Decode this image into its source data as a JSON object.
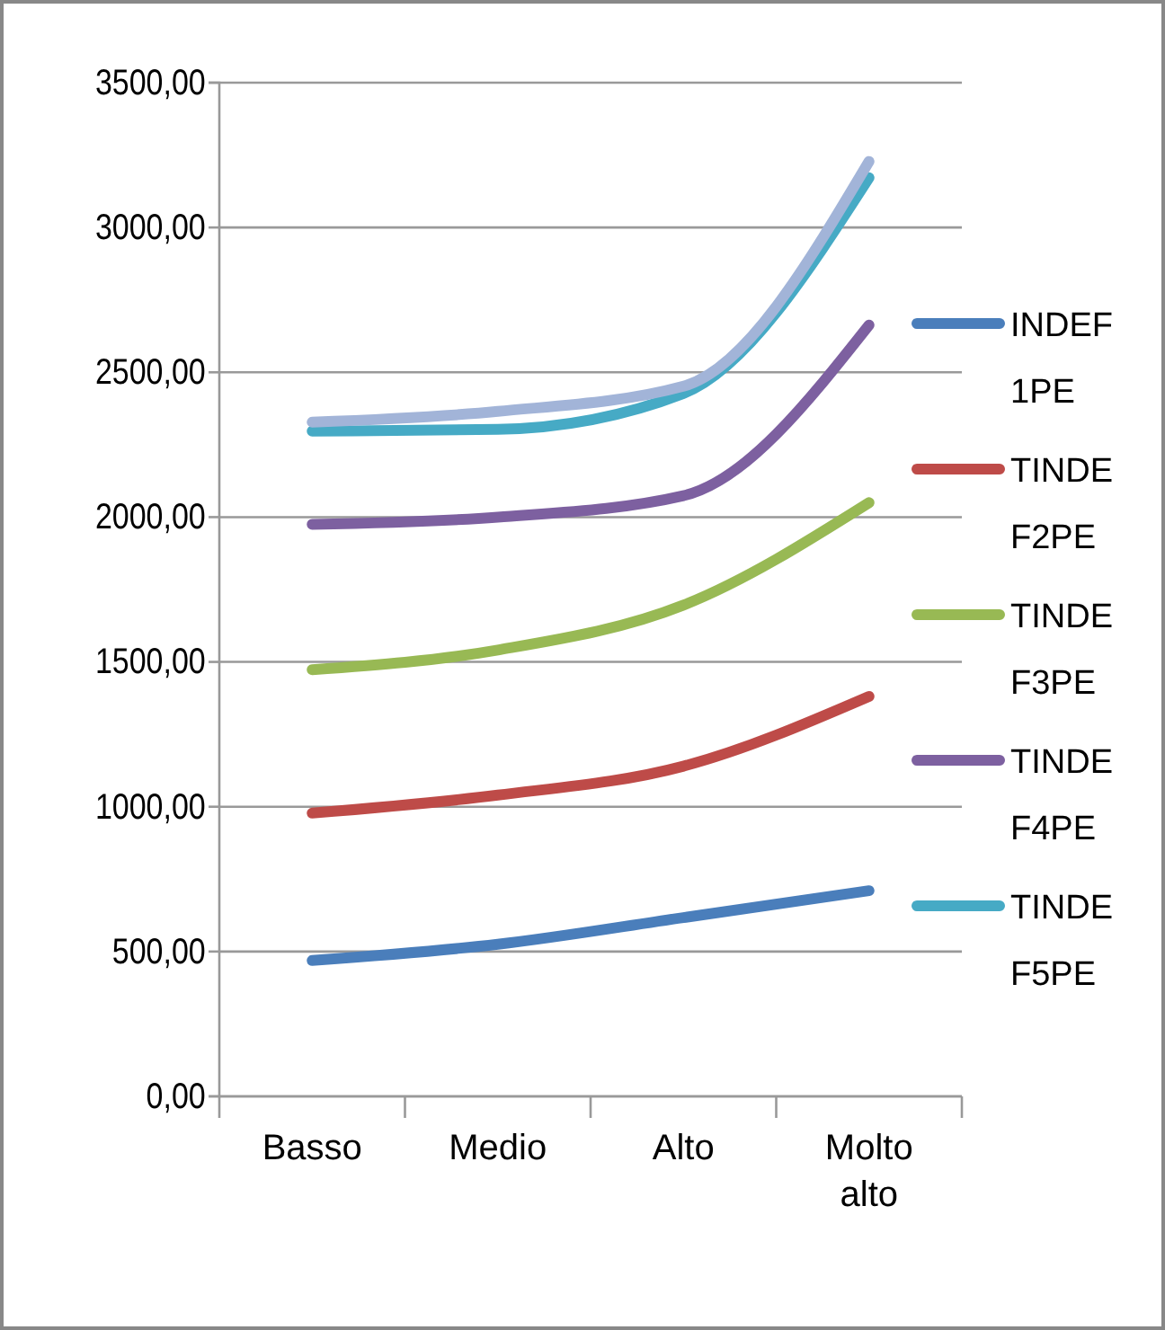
{
  "chart_data": {
    "type": "line",
    "categories": [
      "Basso",
      "Medio",
      "Alto",
      "Molto alto"
    ],
    "series": [
      {
        "name": "INDEF1PE",
        "color": "#4a7ebb",
        "values": [
          469,
          525,
          617,
          710
        ]
      },
      {
        "name": "TINDEF2PE",
        "color": "#be4b48",
        "values": [
          978,
          1040,
          1140,
          1381
        ]
      },
      {
        "name": "TINDEF3PE",
        "color": "#98b954",
        "values": [
          1473,
          1541,
          1696,
          2050
        ]
      },
      {
        "name": "TINDEF4PE",
        "color": "#7d60a0",
        "values": [
          1975,
          2000,
          2074,
          2663
        ]
      },
      {
        "name": "TINDEF5PE",
        "color": "#46aac5",
        "values": [
          2297,
          2303,
          2427,
          3172
        ]
      },
      {
        "color": "#a2b4d8",
        "values": [
          2328,
          2365,
          2452,
          3228
        ]
      }
    ],
    "ylim": [
      0,
      3500
    ],
    "yticks": [
      {
        "value": 0,
        "label": "0,00"
      },
      {
        "value": 500,
        "label": "500,00"
      },
      {
        "value": 1000,
        "label": "1000,00"
      },
      {
        "value": 1500,
        "label": "1500,00"
      },
      {
        "value": 2000,
        "label": "2000,00"
      },
      {
        "value": 2500,
        "label": "2500,00"
      },
      {
        "value": 3000,
        "label": "3000,00"
      },
      {
        "value": 3500,
        "label": "3500,00"
      }
    ],
    "grid": "y",
    "legend": "right",
    "marker": "none",
    "line_style": "solid"
  }
}
